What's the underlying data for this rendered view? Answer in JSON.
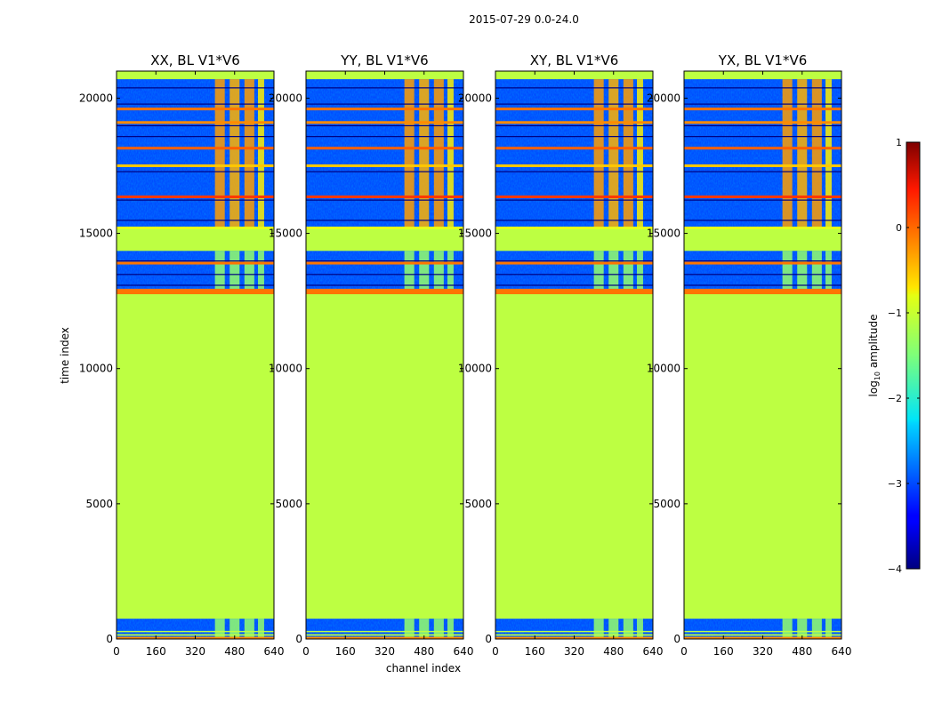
{
  "figure": {
    "suptitle": "2015-07-29 0.0-24.0",
    "xlabel": "channel index",
    "ylabel": "time index",
    "colorbar_label": "log10 amplitude",
    "colorbar_label_base": "log",
    "colorbar_label_sub": "10",
    "colorbar_label_rest": " amplitude"
  },
  "chart_data": {
    "type": "heatmap",
    "title": "2015-07-29 0.0-24.0",
    "xlabel": "channel index",
    "ylabel": "time index",
    "xlim": [
      0,
      640
    ],
    "ylim": [
      0,
      21000
    ],
    "xticks": [
      0,
      160,
      320,
      480,
      640
    ],
    "yticks": [
      0,
      5000,
      10000,
      15000,
      20000
    ],
    "colorbar": {
      "label": "log10 amplitude",
      "vmin": -4,
      "vmax": 1,
      "ticks": [
        -4,
        -3,
        -2,
        -1,
        0,
        1
      ]
    },
    "panels": [
      {
        "title": "XX, BL V1*V6",
        "pol": "XX"
      },
      {
        "title": "YY, BL V1*V6",
        "pol": "YY"
      },
      {
        "title": "XY, BL V1*V6",
        "pol": "XY"
      },
      {
        "title": "YX, BL V1*V6",
        "pol": "YX"
      }
    ],
    "background_level": -1.2,
    "bands": [
      {
        "t0": 0,
        "t1": 80,
        "level": -0.3
      },
      {
        "t0": 120,
        "t1": 180,
        "level": -1.2
      },
      {
        "t0": 260,
        "t1": 300,
        "level": -1.2
      },
      {
        "t0": 12750,
        "t1": 12950,
        "level": -0.2
      },
      {
        "t0": 13850,
        "t1": 13950,
        "level": -0.2
      },
      {
        "t0": 15150,
        "t1": 15250,
        "level": -1.0
      },
      {
        "t0": 16300,
        "t1": 16400,
        "level": 0.1
      },
      {
        "t0": 17450,
        "t1": 17550,
        "level": -0.6
      },
      {
        "t0": 18100,
        "t1": 18200,
        "level": -0.1
      },
      {
        "t0": 19050,
        "t1": 19150,
        "level": -0.3
      },
      {
        "t0": 19550,
        "t1": 19650,
        "level": -0.2
      }
    ],
    "dead_intervals": [
      [
        12950,
        14200
      ],
      [
        15250,
        20700
      ]
    ],
    "notes": "Flat data (log10 amp about -1.2) from t=750 to 12750 and from 14350 to 15200; noisy data (log10 amp -3.5 to -2) with bright RFI bands at channels ~400-600 elsewhere"
  }
}
